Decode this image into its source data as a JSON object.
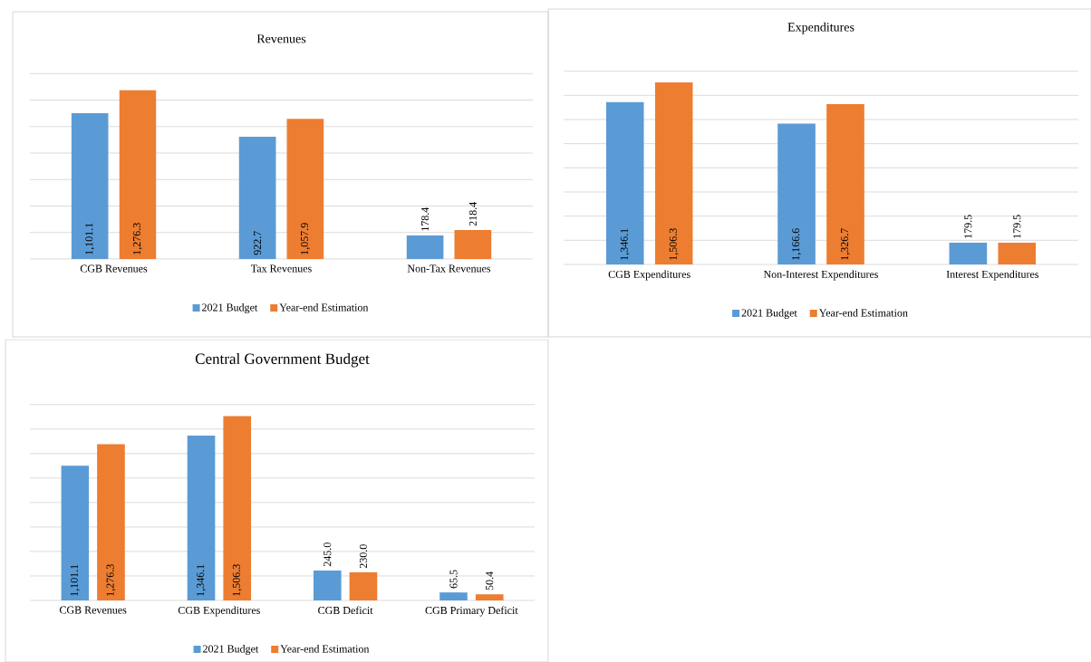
{
  "chart_data": [
    {
      "type": "bar",
      "title": "Revenues",
      "categories": [
        "CGB Revenues",
        "Tax Revenues",
        "Non-Tax Revenues"
      ],
      "series": [
        {
          "name": "2021 Budget",
          "color": "#5b9bd5",
          "values": [
            1101.1,
            922.7,
            178.4
          ],
          "value_labels": [
            "1,101.1",
            "922.7",
            "178.4"
          ]
        },
        {
          "name": "Year-end Estimation",
          "color": "#ed7d31",
          "values": [
            1276.3,
            1057.9,
            218.4
          ],
          "value_labels": [
            "1,276.3",
            "1,057.9",
            "218.4"
          ]
        }
      ],
      "tick_labels": "x",
      "grid": "y",
      "legend": "bottom"
    },
    {
      "type": "bar",
      "title": "Expenditures",
      "categories": [
        "CGB Expenditures",
        "Non-Interest Expenditures",
        "Interest Expenditures"
      ],
      "series": [
        {
          "name": "2021 Budget",
          "color": "#5b9bd5",
          "values": [
            1346.1,
            1166.6,
            179.5
          ],
          "value_labels": [
            "1,346.1",
            "1,166.6",
            "179.5"
          ]
        },
        {
          "name": "Year-end Estimation",
          "color": "#ed7d31",
          "values": [
            1506.3,
            1326.7,
            179.5
          ],
          "value_labels": [
            "1,506.3",
            "1,326.7",
            "179.5"
          ]
        }
      ],
      "tick_labels": "x",
      "grid": "y",
      "legend": "bottom"
    },
    {
      "type": "bar",
      "title": "Central Government Budget",
      "categories": [
        "CGB Revenues",
        "CGB Expenditures",
        "CGB Deficit",
        "CGB Primary Deficit"
      ],
      "series": [
        {
          "name": "2021 Budget",
          "color": "#5b9bd5",
          "values": [
            1101.1,
            1346.1,
            245.0,
            65.5
          ],
          "value_labels": [
            "1,101.1",
            "1,346.1",
            "245.0",
            "65.5"
          ]
        },
        {
          "name": "Year-end Estimation",
          "color": "#ed7d31",
          "values": [
            1276.3,
            1506.3,
            230.0,
            50.4
          ],
          "value_labels": [
            "1,276.3",
            "1,506.3",
            "230.0",
            "50.4"
          ]
        }
      ],
      "tick_labels": "x",
      "grid": "y",
      "legend": "bottom"
    }
  ]
}
